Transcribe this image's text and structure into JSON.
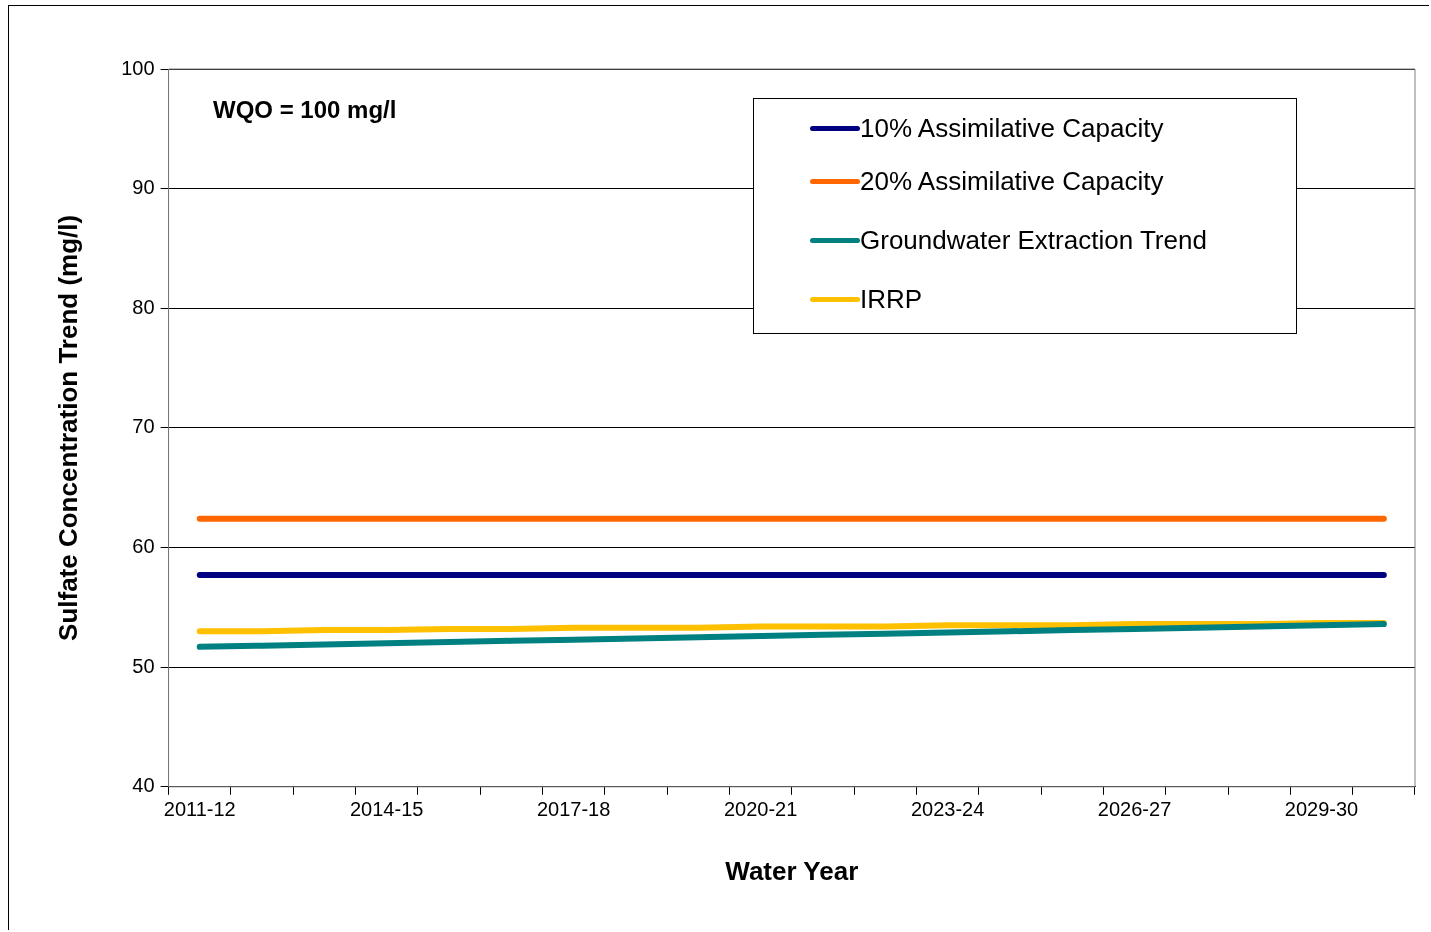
{
  "chart_data": {
    "type": "line",
    "xlabel": "Water Year",
    "ylabel": "Sulfate Concentration Trend (mg/l)",
    "annotations": [
      "WQO = 100 mg/l"
    ],
    "categories": [
      "2011-12",
      null,
      null,
      "2014-15",
      null,
      null,
      "2017-18",
      null,
      null,
      "2020-21",
      null,
      null,
      "2023-24",
      null,
      null,
      "2026-27",
      null,
      null,
      "2029-30",
      null
    ],
    "series": [
      {
        "name": "10% Assimilative Capacity",
        "color": "#000080",
        "values": [
          57.7,
          57.7,
          57.7,
          57.7,
          57.7,
          57.7,
          57.7,
          57.7,
          57.7,
          57.7,
          57.7,
          57.7,
          57.7,
          57.7,
          57.7,
          57.7,
          57.7,
          57.7,
          57.7,
          57.7
        ]
      },
      {
        "name": "20% Assimilative Capacity",
        "color": "#ff6600",
        "values": [
          62.4,
          62.4,
          62.4,
          62.4,
          62.4,
          62.4,
          62.4,
          62.4,
          62.4,
          62.4,
          62.4,
          62.4,
          62.4,
          62.4,
          62.4,
          62.4,
          62.4,
          62.4,
          62.4,
          62.4
        ]
      },
      {
        "name": "Groundwater Extraction Trend",
        "color": "#008080",
        "values": [
          51.7,
          51.8,
          51.9,
          52.0,
          52.1,
          52.2,
          52.3,
          52.4,
          52.5,
          52.6,
          52.7,
          52.8,
          52.9,
          53.0,
          53.1,
          53.2,
          53.3,
          53.4,
          53.5,
          53.6
        ]
      },
      {
        "name": "IRRP",
        "color": "#ffc000",
        "values": [
          53.0,
          53.0,
          53.1,
          53.1,
          53.2,
          53.2,
          53.3,
          53.3,
          53.3,
          53.4,
          53.4,
          53.4,
          53.5,
          53.5,
          53.5,
          53.6,
          53.6,
          53.6,
          53.7,
          53.7
        ]
      }
    ],
    "ylim": [
      40,
      100
    ],
    "yticks": [
      40,
      50,
      60,
      70,
      80,
      90,
      100
    ],
    "grid": "y",
    "legend": "top right",
    "marker": "none",
    "line_style": "solid"
  }
}
